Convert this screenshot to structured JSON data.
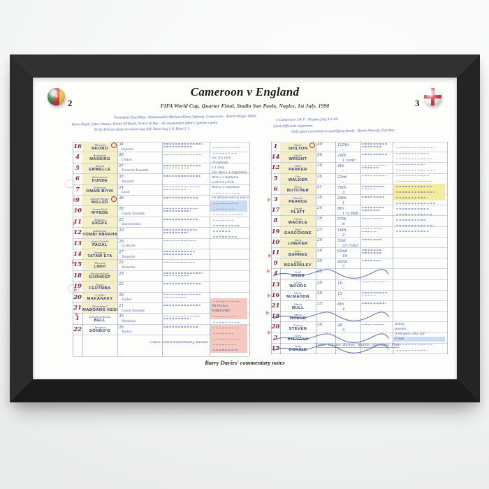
{
  "match": {
    "title": "Cameroon v England",
    "subtitle": "FIFA World Cup, Quarter Final, Stadio San Paolo, Naples, 1st July, 1990",
    "home": {
      "name": "Cameroon",
      "score": "2",
      "flag": "cameroon-flag-ball"
    },
    "away": {
      "name": "England",
      "score": "3",
      "flag": "england-flag-ball"
    }
  },
  "caption": "Barry Davies' commentary notes",
  "handwritten": {
    "left_lines": [
      "President Paul Biya.  Ambassador Michael Kima Tabong.  Cameroon - Albert Roger Milla",
      "Kana-Biyik, Jules Onana, Emile M'Bouh, Victor N'Dip - all suspended after 2 yellow cards.",
      "First African team to reach last 8/F.  Beat Arg 1-0, Rom 2-1"
    ],
    "right_lines": [
      "v Cameroon  1/4 F - Naples  July 1st 90.",
      "52nd different opponent",
      "Only goal conceded in qualifying finals - Kevin Sheedy, Everton"
    ],
    "left_footer_coach": "Coach:- Valeri Nepomniachy, Russian",
    "right_footer_team": "Team:- Lineker, Barnes, Waddle, Gascoigne, Platt"
  },
  "cameroon_table": {
    "rows": [
      {
        "num": "16",
        "first": "Thomas",
        "name": "NKONO",
        "age": "34",
        "club": "Espanol",
        "badge": true
      },
      {
        "num": "4",
        "first": "Benjamin",
        "name": "MASSING",
        "age": "28",
        "club": "Creteil"
      },
      {
        "num": "5",
        "first": "Bertin",
        "name": "EBWELLE",
        "age": "27",
        "club": "Tonnerre Yaounde"
      },
      {
        "num": "6",
        "first": "Emmanuel",
        "name": "KUNDE",
        "age": "33",
        "club": "Yaounde"
      },
      {
        "num": "7",
        "first": "Francois",
        "name": "OMAM BIYIK",
        "age": "24",
        "club": "Laval"
      },
      {
        "num": "9",
        "first": "Albert-Roger",
        "name": "MILLER",
        "age": "38",
        "club": "-",
        "badge": true
      },
      {
        "num": "10",
        "first": "Louis-Paul",
        "name": "M'FEDE",
        "age": "28",
        "club": "Canon Yaounde"
      },
      {
        "num": "11",
        "first": "Eugene",
        "name": "EKEKE",
        "age": "25",
        "club": "Valenciennes"
      },
      {
        "num": "12",
        "first": "Alphonse",
        "name": "YOMBI ABRAHAM",
        "age": "29",
        "club": ""
      },
      {
        "num": "13",
        "first": "Jean-Claude",
        "name": "PAGAL",
        "age": "26",
        "club": "La Roche"
      },
      {
        "num": "14",
        "first": "Stephen",
        "name": "TATAW ETA",
        "age": "27",
        "club": "Tonnerre"
      },
      {
        "num": "15",
        "first": "Thomas",
        "name": "LIBIH",
        "age": "23",
        "club": "Tonnerre"
      },
      {
        "num": "18",
        "first": "Bonaventure",
        "name": "DJONKEP",
        "age": "29",
        "club": ""
      },
      {
        "num": "19",
        "first": "Roger",
        "name": "FEUTMBA",
        "age": "22",
        "club": ""
      },
      {
        "num": "20",
        "first": "Cyrille",
        "name": "MAKANAKY",
        "age": "26",
        "club": "Toulon"
      },
      {
        "num": "21",
        "first": "Emmanuel",
        "name": "MABOANG KESSACK",
        "age": "21",
        "club": "Canon Yaounde"
      },
      {
        "num": "1",
        "first": "Joseph-Antoine",
        "name": "BELL",
        "age": "35",
        "club": "Bordeaux"
      },
      {
        "num": "22",
        "first": "Jacques",
        "name": "SONGO'O",
        "age": "26",
        "club": "Toulon"
      }
    ]
  },
  "england_table": {
    "rows": [
      {
        "num": "1",
        "first": "Peter",
        "name": "SHILTON",
        "age": "40",
        "caps": "125th",
        "goals": "-",
        "badge": true
      },
      {
        "num": "14",
        "first": "Mark",
        "name": "WRIGHT",
        "age": "26",
        "caps": "20th",
        "goals": "1 conc."
      },
      {
        "num": "12",
        "first": "Paul",
        "name": "PARKER",
        "age": "26",
        "caps": "4th",
        "goals": "-"
      },
      {
        "num": "5",
        "first": "Des",
        "name": "WALKER",
        "age": "26",
        "caps": "23rd",
        "goals": "-"
      },
      {
        "num": "6",
        "first": "Terry",
        "name": "BUTCHER",
        "age": "31",
        "caps": "76th",
        "goals": "3"
      },
      {
        "num": "3",
        "first": "Stuart",
        "name": "PEARCE",
        "age": "28",
        "caps": "29th",
        "goals": "1"
      },
      {
        "num": "17",
        "first": "David",
        "name": "PLATT",
        "age": "24",
        "caps": "8th",
        "goals": "1 (v Bel)"
      },
      {
        "num": "8",
        "first": "Chris",
        "name": "WADDLE",
        "age": "29",
        "caps": "57th",
        "goals": "6"
      },
      {
        "num": "19",
        "first": "Paul",
        "name": "GASCOIGNE",
        "age": "23",
        "caps": "16th",
        "goals": "2"
      },
      {
        "num": "10",
        "first": "Gary",
        "name": "LINEKER",
        "age": "29",
        "caps": "51st",
        "goals": "33 (16s)"
      },
      {
        "num": "11",
        "first": "John",
        "name": "BARNES",
        "age": "26",
        "caps": "62nd",
        "goals": "10"
      },
      {
        "num": "9",
        "first": "Peter",
        "name": "BEARDSLEY",
        "age": "29",
        "caps": "42nd",
        "goals": "7"
      },
      {
        "num": "4",
        "first": "Neil",
        "name": "WEBB",
        "age": "26",
        "caps": "",
        "goals": "",
        "struck": true
      },
      {
        "num": "13",
        "first": "Chris",
        "name": "WOODS",
        "age": "30",
        "caps": "16",
        "goals": "-"
      },
      {
        "num": "16",
        "first": "Steve",
        "name": "McMAHON",
        "age": "28",
        "caps": "15",
        "goals": "-"
      },
      {
        "num": "21",
        "first": "Steve",
        "name": "BULL",
        "age": "25",
        "caps": "8th",
        "goals": "4"
      },
      {
        "num": "18",
        "first": "Steve",
        "name": "HODGE",
        "age": "",
        "caps": "",
        "goals": "",
        "struck": true
      },
      {
        "num": "20",
        "first": "Trevor",
        "name": "STEVEN",
        "age": "26",
        "caps": "26",
        "goals": "3"
      },
      {
        "num": "2",
        "first": "Gary",
        "name": "STEVENS",
        "age": "",
        "caps": "",
        "goals": "",
        "struck": true
      },
      {
        "num": "15",
        "first": "Tony",
        "name": "DORIGO",
        "age": "",
        "caps": "",
        "goals": "",
        "struck": true
      }
    ]
  },
  "side_notes": {
    "cameroon_record": [
      "'82: 0-0 Peru",
      "0-0 Poland",
      "1-1 Italy",
      "'90: Won 1-0 Argentina",
      "Won 2-1 Romania",
      "Lost 0-4 USSR",
      "Won 2-1 Colombia",
      "1st African side in last 8"
    ],
    "cameroon_highlighted": [
      "'88 France",
      "MAKANAKY"
    ],
    "england_bottom": [
      "Bobby",
      "Robson",
      "(Previous) 1982 Q/F",
      "F. Sub"
    ]
  },
  "colors": {
    "ink_blue": "#3d57a4",
    "ink_red": "#8c2333",
    "name_highlight": "#f5efc9",
    "pink_highlight": "#f6c9c0",
    "yellow_highlight": "#f3eb9e",
    "frame_black": "#262626",
    "cameroon_green": "#2c7a45",
    "cameroon_red": "#c6323c",
    "cameroon_yellow": "#eec23f",
    "england_red": "#cf3540"
  }
}
